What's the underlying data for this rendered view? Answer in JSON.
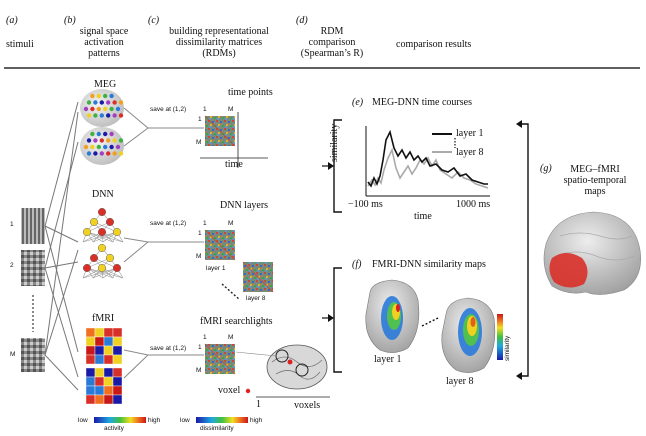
{
  "columns": [
    {
      "letter": "(a)",
      "title": "stimuli"
    },
    {
      "letter": "(b)",
      "title": "signal space\nactivation\npatterns"
    },
    {
      "letter": "(c)",
      "title": "building representational\ndissimilarity matrices\n(RDMs)"
    },
    {
      "letter": "(d)",
      "title": "RDM\ncomparison\n(Spearman’s R)"
    },
    {
      "title": "comparison results"
    }
  ],
  "stimuli": {
    "labels": [
      "1",
      "2",
      "M"
    ]
  },
  "modalities": {
    "meg": "MEG",
    "dnn": "DNN",
    "fmri": "fMRI"
  },
  "rdm": {
    "save_label": "save at (1,2)",
    "row1_label": "1",
    "rowM_label": "M",
    "col1_label": "1",
    "colM_label": "M",
    "meg_title": "time points",
    "time_axis": "time",
    "dnn_title": "DNN layers",
    "layer1": "layer 1",
    "layer8": "layer 8",
    "fmri_title": "fMRI searchlights",
    "voxel": "voxel",
    "voxels_axis": "voxels",
    "axis_start": "1"
  },
  "colorbars": {
    "activity": {
      "low": "low",
      "high": "high",
      "label": "activity"
    },
    "dissimilarity": {
      "low": "low",
      "high": "high",
      "label": "dissimilarity"
    }
  },
  "panel_e": {
    "letter": "(e)",
    "title": "MEG-DNN time courses",
    "ylabel": "similarity",
    "xlabel": "time",
    "xmin": "−100 ms",
    "xmax": "1000 ms",
    "legend": [
      {
        "name": "layer 1",
        "color": "#111111"
      },
      {
        "name": "layer 8",
        "color": "#aaaaaa"
      }
    ]
  },
  "panel_f": {
    "letter": "(f)",
    "title": "FMRI-DNN similarity maps",
    "layer1": "layer 1",
    "layer8": "layer 8",
    "cbar_label": "similarity"
  },
  "panel_g": {
    "letter": "(g)",
    "title": "MEG–fMRI\nspatio-temporal\nmaps"
  }
}
